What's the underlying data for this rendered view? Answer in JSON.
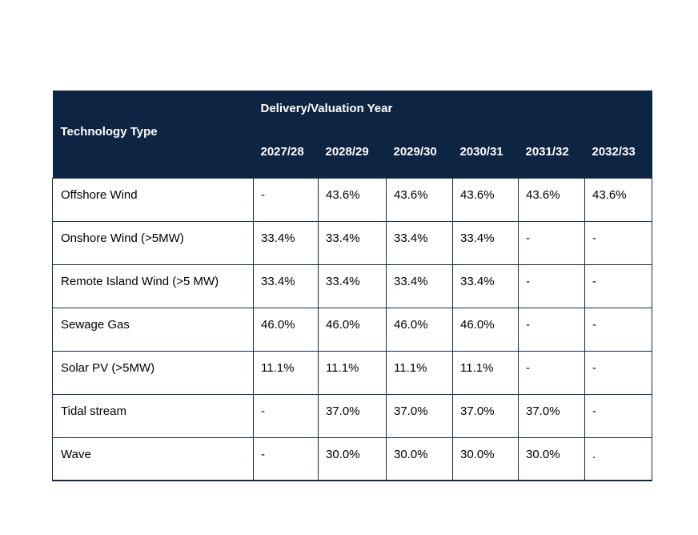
{
  "chart_data": {
    "type": "table",
    "corner_header": "Technology Type",
    "group_header": "Delivery/Valuation Year",
    "year_headers": [
      "2027/28",
      "2028/29",
      "2029/30",
      "2030/31",
      "2031/32",
      "2032/33"
    ],
    "rows": [
      {
        "label": "Offshore Wind",
        "values": [
          "-",
          "43.6%",
          "43.6%",
          "43.6%",
          "43.6%",
          "43.6%"
        ]
      },
      {
        "label": "Onshore Wind (>5MW)",
        "values": [
          "33.4%",
          "33.4%",
          "33.4%",
          "33.4%",
          "-",
          "-"
        ]
      },
      {
        "label": "Remote Island Wind (>5 MW)",
        "values": [
          "33.4%",
          "33.4%",
          "33.4%",
          "33.4%",
          "-",
          "-"
        ]
      },
      {
        "label": "Sewage Gas",
        "values": [
          "46.0%",
          "46.0%",
          "46.0%",
          "46.0%",
          "-",
          "-"
        ]
      },
      {
        "label": "Solar PV (>5MW)",
        "values": [
          "11.1%",
          "11.1%",
          "11.1%",
          "11.1%",
          "-",
          "-"
        ]
      },
      {
        "label": "Tidal stream",
        "values": [
          "-",
          "37.0%",
          "37.0%",
          "37.0%",
          "37.0%",
          "-"
        ]
      },
      {
        "label": "Wave",
        "values": [
          "-",
          "30.0%",
          "30.0%",
          "30.0%",
          "30.0%",
          "."
        ]
      }
    ]
  },
  "colors": {
    "header_bg": "#0e2443",
    "header_text": "#ffffff",
    "border": "#15294b",
    "body_text": "#000000",
    "page_bg": "#ffffff"
  }
}
